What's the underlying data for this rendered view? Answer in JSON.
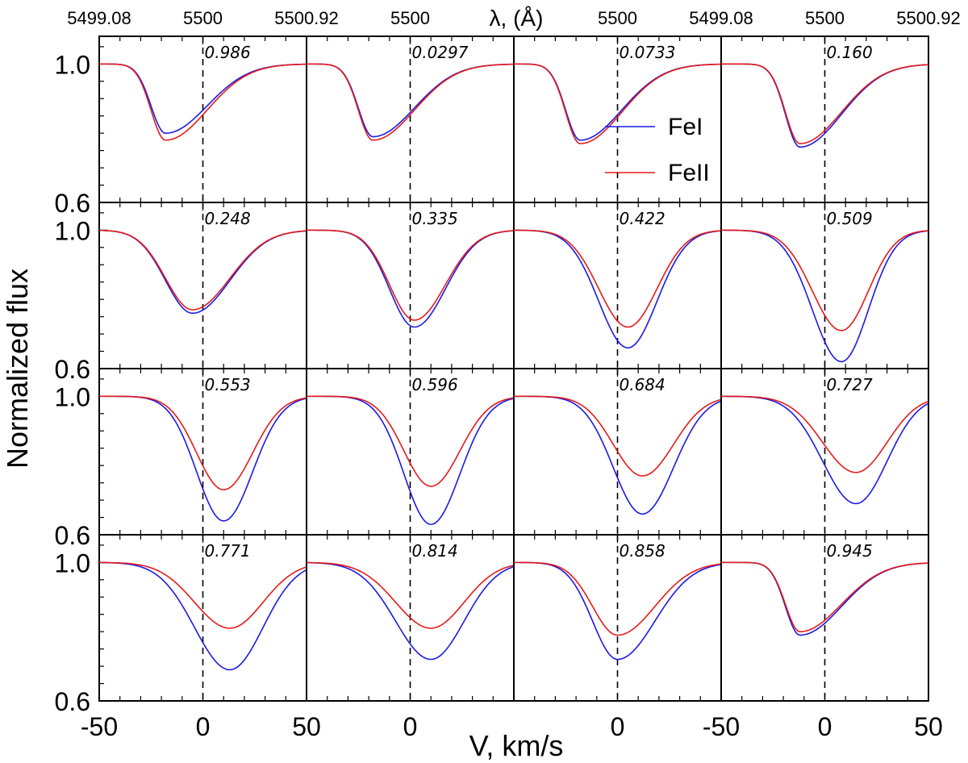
{
  "chart_data": {
    "type": "line",
    "layout": "4x4 grid of panels",
    "xlabel": "V, km/s",
    "ylabel": "Normalized flux",
    "top_axis_label": "λ, (Å)",
    "xlim": [
      -50,
      50
    ],
    "ylim": [
      0.6,
      1.08
    ],
    "bottom_tick_labels": [
      {
        "panel_col": 0,
        "labels": [
          {
            "v": -50,
            "text": "-50"
          },
          {
            "v": 0,
            "text": "0"
          },
          {
            "v": 50,
            "text": "50"
          }
        ]
      },
      {
        "panel_col": 1,
        "labels": [
          {
            "v": 0,
            "text": "0"
          }
        ]
      },
      {
        "panel_col": 2,
        "labels": [
          {
            "v": 0,
            "text": "0"
          }
        ]
      },
      {
        "panel_col": 3,
        "labels": [
          {
            "v": -50,
            "text": "-50"
          },
          {
            "v": 0,
            "text": "0"
          },
          {
            "v": 50,
            "text": "50"
          }
        ]
      }
    ],
    "top_tick_labels": [
      {
        "panel_col": 0,
        "labels": [
          {
            "v": -50,
            "text": "5499.08"
          },
          {
            "v": 0,
            "text": "5500"
          },
          {
            "v": 50,
            "text": "5500.92"
          }
        ]
      },
      {
        "panel_col": 1,
        "labels": [
          {
            "v": 0,
            "text": "5500"
          }
        ]
      },
      {
        "panel_col": 2,
        "labels": [
          {
            "v": 0,
            "text": "5500"
          }
        ]
      },
      {
        "panel_col": 3,
        "labels": [
          {
            "v": -50,
            "text": "5499.08"
          },
          {
            "v": 0,
            "text": "5500"
          },
          {
            "v": 50,
            "text": "5500.92"
          }
        ]
      }
    ],
    "y_tick_labels": [
      {
        "v": 1.0,
        "text": "1.0"
      },
      {
        "v": 0.6,
        "text": "0.6"
      }
    ],
    "legend": {
      "location": "top row, third panel",
      "entries": [
        {
          "name": "FeI",
          "color": "#1a1ae6"
        },
        {
          "name": "FeII",
          "color": "#e61a1a"
        }
      ]
    },
    "reference_line": {
      "v": 0,
      "style": "dashed"
    },
    "panels": [
      {
        "phase": "0.986",
        "FeI": {
          "center": -18,
          "depth": 0.8,
          "left_width": 7,
          "right_width": 20
        },
        "FeII": {
          "center": -18,
          "depth": 0.78,
          "left_width": 7,
          "right_width": 20
        }
      },
      {
        "phase": "0.0297",
        "FeI": {
          "center": -18,
          "depth": 0.79,
          "left_width": 7,
          "right_width": 20
        },
        "FeII": {
          "center": -18,
          "depth": 0.78,
          "left_width": 7,
          "right_width": 20
        }
      },
      {
        "phase": "0.0733",
        "FeI": {
          "center": -18,
          "depth": 0.78,
          "left_width": 7,
          "right_width": 20
        },
        "FeII": {
          "center": -18,
          "depth": 0.77,
          "left_width": 7,
          "right_width": 20
        }
      },
      {
        "phase": "0.160",
        "FeI": {
          "center": -12,
          "depth": 0.76,
          "left_width": 7,
          "right_width": 20
        },
        "FeII": {
          "center": -12,
          "depth": 0.77,
          "left_width": 7,
          "right_width": 20
        }
      },
      {
        "phase": "0.248",
        "FeI": {
          "center": -5,
          "depth": 0.76,
          "left_width": 13,
          "right_width": 18
        },
        "FeII": {
          "center": -5,
          "depth": 0.77,
          "left_width": 13,
          "right_width": 18
        }
      },
      {
        "phase": "0.335",
        "FeI": {
          "center": 2,
          "depth": 0.72,
          "left_width": 12,
          "right_width": 15
        },
        "FeII": {
          "center": 2,
          "depth": 0.74,
          "left_width": 12,
          "right_width": 15
        }
      },
      {
        "phase": "0.422",
        "FeI": {
          "center": 5,
          "depth": 0.66,
          "left_width": 14,
          "right_width": 14
        },
        "FeII": {
          "center": 5,
          "depth": 0.72,
          "left_width": 14,
          "right_width": 14
        }
      },
      {
        "phase": "0.509",
        "FeI": {
          "center": 8,
          "depth": 0.62,
          "left_width": 14,
          "right_width": 13
        },
        "FeII": {
          "center": 8,
          "depth": 0.71,
          "left_width": 14,
          "right_width": 13
        }
      },
      {
        "phase": "0.553",
        "FeI": {
          "center": 10,
          "depth": 0.64,
          "left_width": 13,
          "right_width": 14
        },
        "FeII": {
          "center": 10,
          "depth": 0.73,
          "left_width": 13,
          "right_width": 14
        }
      },
      {
        "phase": "0.596",
        "FeI": {
          "center": 10,
          "depth": 0.63,
          "left_width": 13,
          "right_width": 14
        },
        "FeII": {
          "center": 10,
          "depth": 0.74,
          "left_width": 13,
          "right_width": 14
        }
      },
      {
        "phase": "0.684",
        "FeI": {
          "center": 12,
          "depth": 0.66,
          "left_width": 14,
          "right_width": 15
        },
        "FeII": {
          "center": 12,
          "depth": 0.77,
          "left_width": 14,
          "right_width": 15
        }
      },
      {
        "phase": "0.727",
        "FeI": {
          "center": 15,
          "depth": 0.69,
          "left_width": 16,
          "right_width": 15
        },
        "FeII": {
          "center": 15,
          "depth": 0.78,
          "left_width": 16,
          "right_width": 15
        }
      },
      {
        "phase": "0.771",
        "FeI": {
          "center": 13,
          "depth": 0.69,
          "left_width": 17,
          "right_width": 16
        },
        "FeII": {
          "center": 13,
          "depth": 0.81,
          "left_width": 17,
          "right_width": 16
        }
      },
      {
        "phase": "0.814",
        "FeI": {
          "center": 10,
          "depth": 0.72,
          "left_width": 17,
          "right_width": 16
        },
        "FeII": {
          "center": 10,
          "depth": 0.81,
          "left_width": 17,
          "right_width": 16
        }
      },
      {
        "phase": "0.858",
        "FeI": {
          "center": 0,
          "depth": 0.72,
          "left_width": 12,
          "right_width": 18
        },
        "FeII": {
          "center": 0,
          "depth": 0.79,
          "left_width": 12,
          "right_width": 18
        }
      },
      {
        "phase": "0.945",
        "FeI": {
          "center": -12,
          "depth": 0.79,
          "left_width": 7,
          "right_width": 20
        },
        "FeII": {
          "center": -12,
          "depth": 0.8,
          "left_width": 7,
          "right_width": 20
        }
      }
    ]
  }
}
